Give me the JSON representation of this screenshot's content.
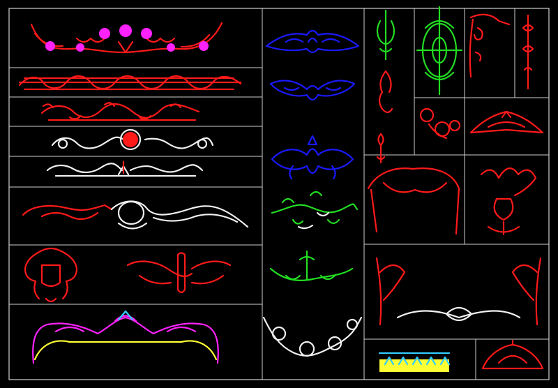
{
  "sheet": {
    "background": "#000000",
    "frame_color": "#d8d8d8",
    "title": "",
    "colors": {
      "red": "#ff1a1a",
      "blue": "#1a1aff",
      "green": "#22dd22",
      "white": "#f0f0f0",
      "magenta": "#ff22ff",
      "yellow": "#ffff33",
      "cyan": "#33ccff"
    }
  },
  "ornaments": [
    {
      "kind": "floral-garland-border",
      "color": "red",
      "accent": "magenta"
    },
    {
      "kind": "scroll-frieze-border",
      "color": "red"
    },
    {
      "kind": "acanthus-frieze-border",
      "color": "red"
    },
    {
      "kind": "rosette-scroll-border",
      "color": "white",
      "accent": "red"
    },
    {
      "kind": "shell-leaf-border",
      "color": "white",
      "accent": "red"
    },
    {
      "kind": "acanthus-cartouche-border",
      "color": "white",
      "accent": "red"
    },
    {
      "kind": "shield-cartouche",
      "color": "red"
    },
    {
      "kind": "foliate-crest",
      "color": "red"
    },
    {
      "kind": "crown-pediment",
      "color": "magenta",
      "accent": "yellow"
    },
    {
      "kind": "scroll-crest",
      "color": "blue"
    },
    {
      "kind": "leaf-crest",
      "color": "blue"
    },
    {
      "kind": "fan-crest",
      "color": "blue"
    },
    {
      "kind": "vine-spray",
      "color": "green"
    },
    {
      "kind": "flower-spray",
      "color": "green"
    },
    {
      "kind": "rose-garland",
      "color": "white"
    },
    {
      "kind": "lyre-finial",
      "color": "green"
    },
    {
      "kind": "medallion-finial",
      "color": "green"
    },
    {
      "kind": "corner-scroll",
      "color": "red"
    },
    {
      "kind": "vertical-finial",
      "color": "red"
    },
    {
      "kind": "vertical-drop",
      "color": "red"
    },
    {
      "kind": "flower-cluster",
      "color": "red"
    },
    {
      "kind": "eagle-pediment",
      "color": "red"
    },
    {
      "kind": "small-drop",
      "color": "red"
    },
    {
      "kind": "arched-valance",
      "color": "red"
    },
    {
      "kind": "urn-bouquet",
      "color": "red"
    },
    {
      "kind": "ribbon-swag-frame",
      "color": "red",
      "accent": "white"
    },
    {
      "kind": "fleur-band",
      "color": "yellow",
      "accent": "cyan"
    },
    {
      "kind": "small-pediment",
      "color": "red"
    }
  ]
}
